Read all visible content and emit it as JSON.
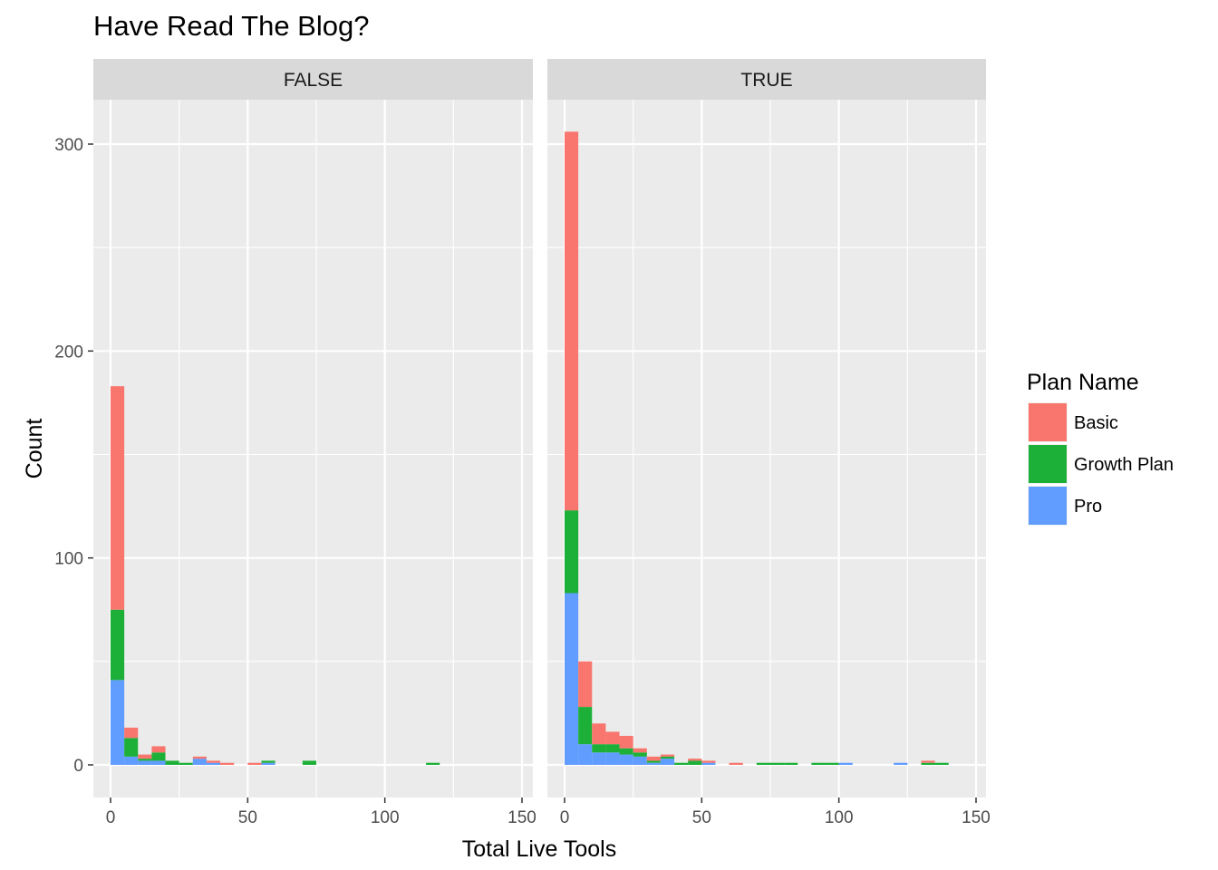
{
  "chart_data": {
    "type": "bar",
    "subtype": "faceted stacked histogram",
    "title": "Have Read The Blog?",
    "xlabel": "Total Live Tools",
    "ylabel": "Count",
    "xlim": [
      -5,
      150
    ],
    "ylim": [
      -15,
      325
    ],
    "x_ticks": [
      0,
      50,
      100,
      150
    ],
    "y_ticks": [
      0,
      100,
      200,
      300
    ],
    "grid": true,
    "bin_width": 5,
    "legend": {
      "title": "Plan Name",
      "position": "right",
      "entries": [
        {
          "name": "Basic",
          "color": "#F8766D"
        },
        {
          "name": "Growth Plan",
          "color": "#1DB038"
        },
        {
          "name": "Pro",
          "color": "#619CFF"
        }
      ]
    },
    "facets": [
      {
        "label": "FALSE",
        "bins": [
          {
            "x": 2.5,
            "Pro": 41,
            "Growth Plan": 34,
            "Basic": 108
          },
          {
            "x": 7.5,
            "Pro": 4,
            "Growth Plan": 9,
            "Basic": 5
          },
          {
            "x": 12.5,
            "Pro": 2,
            "Growth Plan": 1,
            "Basic": 2
          },
          {
            "x": 17.5,
            "Pro": 2,
            "Growth Plan": 4,
            "Basic": 3
          },
          {
            "x": 22.5,
            "Pro": 0,
            "Growth Plan": 2,
            "Basic": 0
          },
          {
            "x": 27.5,
            "Pro": 0,
            "Growth Plan": 1,
            "Basic": 0
          },
          {
            "x": 32.5,
            "Pro": 3,
            "Growth Plan": 0,
            "Basic": 1
          },
          {
            "x": 37.5,
            "Pro": 1,
            "Growth Plan": 0,
            "Basic": 1
          },
          {
            "x": 42.5,
            "Pro": 0,
            "Growth Plan": 0,
            "Basic": 1
          },
          {
            "x": 52.5,
            "Pro": 0,
            "Growth Plan": 0,
            "Basic": 1
          },
          {
            "x": 57.5,
            "Pro": 1,
            "Growth Plan": 1,
            "Basic": 0
          },
          {
            "x": 72.5,
            "Pro": 0,
            "Growth Plan": 2,
            "Basic": 0
          },
          {
            "x": 117.5,
            "Pro": 0,
            "Growth Plan": 1,
            "Basic": 0
          }
        ]
      },
      {
        "label": "TRUE",
        "bins": [
          {
            "x": 2.5,
            "Pro": 83,
            "Growth Plan": 40,
            "Basic": 183
          },
          {
            "x": 7.5,
            "Pro": 10,
            "Growth Plan": 18,
            "Basic": 22
          },
          {
            "x": 12.5,
            "Pro": 6,
            "Growth Plan": 4,
            "Basic": 10
          },
          {
            "x": 17.5,
            "Pro": 6,
            "Growth Plan": 4,
            "Basic": 6
          },
          {
            "x": 22.5,
            "Pro": 5,
            "Growth Plan": 3,
            "Basic": 6
          },
          {
            "x": 27.5,
            "Pro": 4,
            "Growth Plan": 2,
            "Basic": 2
          },
          {
            "x": 32.5,
            "Pro": 1,
            "Growth Plan": 1,
            "Basic": 2
          },
          {
            "x": 37.5,
            "Pro": 3,
            "Growth Plan": 1,
            "Basic": 1
          },
          {
            "x": 42.5,
            "Pro": 0,
            "Growth Plan": 1,
            "Basic": 0
          },
          {
            "x": 47.5,
            "Pro": 0,
            "Growth Plan": 2,
            "Basic": 1
          },
          {
            "x": 52.5,
            "Pro": 1,
            "Growth Plan": 0,
            "Basic": 1
          },
          {
            "x": 62.5,
            "Pro": 0,
            "Growth Plan": 0,
            "Basic": 1
          },
          {
            "x": 72.5,
            "Pro": 0,
            "Growth Plan": 1,
            "Basic": 0
          },
          {
            "x": 77.5,
            "Pro": 0,
            "Growth Plan": 1,
            "Basic": 0
          },
          {
            "x": 82.5,
            "Pro": 0,
            "Growth Plan": 1,
            "Basic": 0
          },
          {
            "x": 92.5,
            "Pro": 0,
            "Growth Plan": 1,
            "Basic": 0
          },
          {
            "x": 97.5,
            "Pro": 0,
            "Growth Plan": 1,
            "Basic": 0
          },
          {
            "x": 102.5,
            "Pro": 1,
            "Growth Plan": 0,
            "Basic": 0
          },
          {
            "x": 122.5,
            "Pro": 1,
            "Growth Plan": 0,
            "Basic": 0
          },
          {
            "x": 132.5,
            "Pro": 0,
            "Growth Plan": 1,
            "Basic": 1
          },
          {
            "x": 137.5,
            "Pro": 0,
            "Growth Plan": 1,
            "Basic": 0
          }
        ]
      }
    ]
  }
}
